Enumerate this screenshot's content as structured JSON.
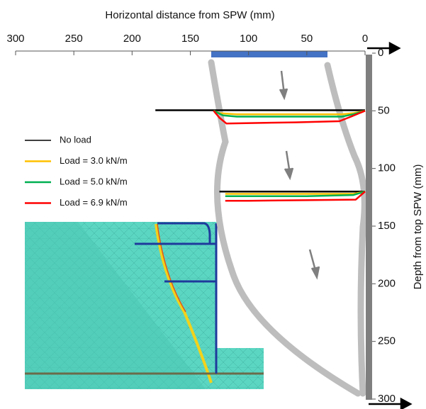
{
  "chart_data": {
    "type": "line",
    "xlabel": "Horizontal distance from SPW (mm)",
    "ylabel": "Depth from top SPW (mm)",
    "xlim": [
      300,
      0
    ],
    "xticks": [
      300,
      250,
      200,
      150,
      100,
      50,
      0
    ],
    "ylim": [
      0,
      300
    ],
    "yticks": [
      0,
      50,
      100,
      150,
      200,
      250,
      300
    ],
    "series": [
      {
        "name": "No load",
        "color": "#000000",
        "x": [
          180,
          150,
          100,
          50,
          0,
          null,
          125,
          80,
          40,
          0
        ],
        "y": [
          49.5,
          49.5,
          49.5,
          49.5,
          49.5,
          null,
          120,
          120,
          120,
          120
        ]
      },
      {
        "name": "Load = 3.0 kN/m",
        "color": "#ffc000",
        "x": [
          130,
          125,
          110,
          60,
          20,
          10,
          0,
          null,
          120,
          100,
          50,
          10,
          0
        ],
        "y": [
          50,
          52,
          53,
          53,
          53,
          52,
          50,
          null,
          122,
          122,
          122,
          122,
          120
        ]
      },
      {
        "name": "Load = 5.0 kN/m",
        "color": "#00b050",
        "x": [
          130,
          122,
          110,
          60,
          20,
          10,
          0,
          null,
          120,
          100,
          50,
          10,
          0
        ],
        "y": [
          50,
          54,
          55,
          55,
          55,
          53,
          50,
          null,
          124,
          124,
          124,
          123,
          120
        ]
      },
      {
        "name": "Load = 6.9 kN/m",
        "color": "#ff0000",
        "x": [
          130,
          125,
          119,
          60,
          22,
          12,
          0,
          null,
          120,
          100,
          50,
          8,
          0
        ],
        "y": [
          50,
          56,
          61,
          60,
          59,
          55,
          50,
          null,
          128,
          128,
          127.5,
          127,
          120
        ]
      }
    ]
  }
}
